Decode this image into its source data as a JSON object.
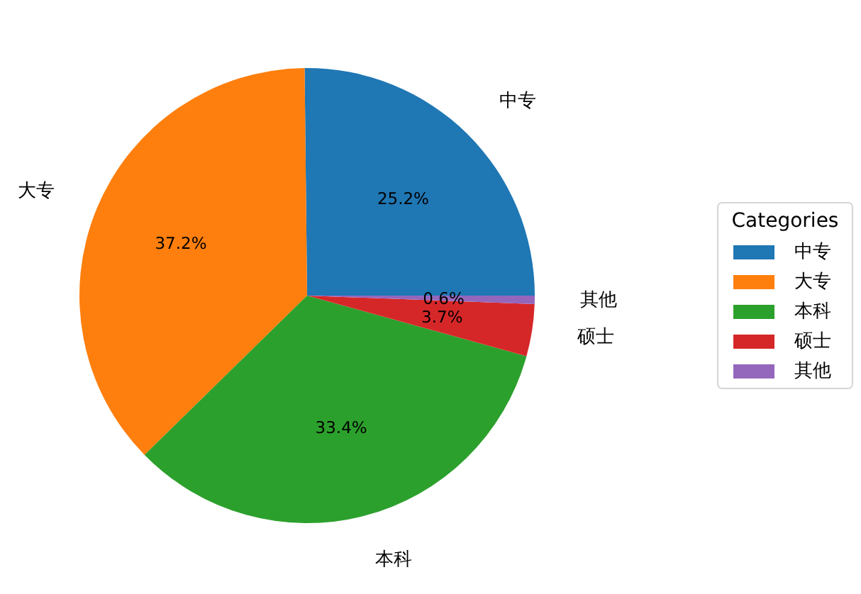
{
  "chart_data": {
    "type": "pie",
    "categories": [
      "中专",
      "大专",
      "本科",
      "硕士",
      "其他"
    ],
    "values": [
      25.2,
      37.2,
      33.4,
      3.7,
      0.6
    ],
    "value_labels": [
      "25.2%",
      "37.2%",
      "33.4%",
      "3.7%",
      "0.6%"
    ],
    "colors": [
      "#1f77b4",
      "#ff7f0e",
      "#2ca02c",
      "#d62728",
      "#9467bd"
    ],
    "legend": "right",
    "legend_title": "Categories"
  }
}
